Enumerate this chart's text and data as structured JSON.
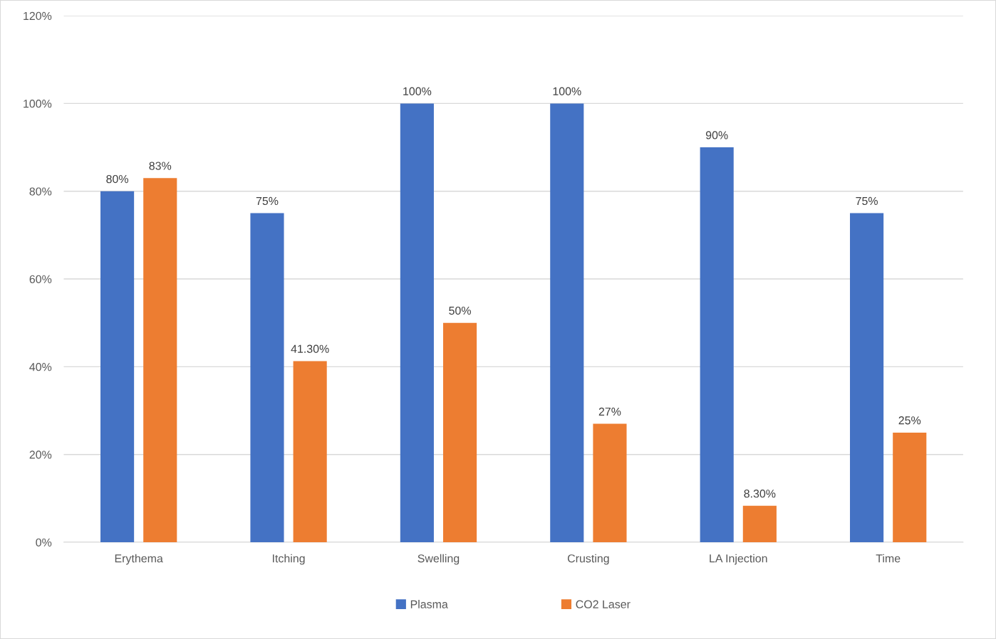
{
  "chart_data": {
    "type": "bar",
    "categories": [
      "Erythema",
      "Itching",
      "Swelling",
      "Crusting",
      "LA Injection",
      "Time"
    ],
    "series": [
      {
        "name": "Plasma",
        "color": "#4472c4",
        "values": [
          80,
          75,
          100,
          100,
          90,
          75
        ],
        "value_labels": [
          "80%",
          "75%",
          "100%",
          "100%",
          "90%",
          "75%"
        ]
      },
      {
        "name": "CO2 Laser",
        "color": "#ed7d31",
        "values": [
          83,
          41.3,
          50,
          27,
          8.3,
          25
        ],
        "value_labels": [
          "83%",
          "41.30%",
          "50%",
          "27%",
          "8.30%",
          "25%"
        ]
      }
    ],
    "ylim": [
      0,
      120
    ],
    "yticks": [
      {
        "value": 0,
        "label": "0%"
      },
      {
        "value": 20,
        "label": "20%"
      },
      {
        "value": 40,
        "label": "40%"
      },
      {
        "value": 60,
        "label": "60%"
      },
      {
        "value": 80,
        "label": "80%"
      },
      {
        "value": 100,
        "label": "100%"
      },
      {
        "value": 120,
        "label": "120%"
      }
    ],
    "grid": "y",
    "legend": "bottom"
  }
}
